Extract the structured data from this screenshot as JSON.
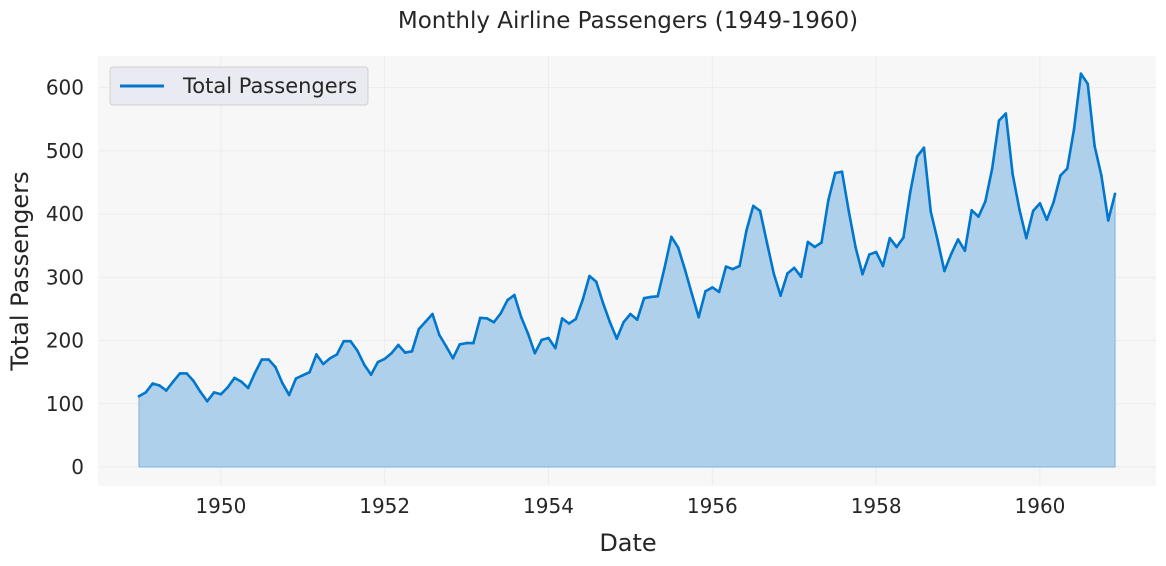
{
  "chart_data": {
    "type": "area",
    "title": "Monthly Airline Passengers (1949-1960)",
    "xlabel": "Date",
    "ylabel": "Total Passengers",
    "xlim": [
      "1948-07",
      "1961-06"
    ],
    "ylim": [
      -30,
      650
    ],
    "x_ticks": [
      "1950",
      "1952",
      "1954",
      "1956",
      "1958",
      "1960"
    ],
    "y_ticks": [
      0,
      100,
      200,
      300,
      400,
      500,
      600
    ],
    "grid": true,
    "legend_position": "upper-left",
    "colors": {
      "line": "#0077cc",
      "fill": "#aed0ea",
      "plot_background": "#f7f7f7",
      "grid": "#ececec"
    },
    "series": [
      {
        "name": "Total Passengers",
        "start": "1949-01",
        "frequency": "monthly",
        "values": [
          112,
          118,
          132,
          129,
          121,
          135,
          148,
          148,
          136,
          119,
          104,
          118,
          115,
          126,
          141,
          135,
          125,
          149,
          170,
          170,
          158,
          133,
          114,
          140,
          145,
          150,
          178,
          163,
          172,
          178,
          199,
          199,
          184,
          162,
          146,
          166,
          171,
          180,
          193,
          181,
          183,
          218,
          230,
          242,
          209,
          191,
          172,
          194,
          196,
          196,
          236,
          235,
          229,
          243,
          264,
          272,
          237,
          211,
          180,
          201,
          204,
          188,
          235,
          227,
          234,
          264,
          302,
          293,
          259,
          229,
          203,
          229,
          242,
          233,
          267,
          269,
          270,
          315,
          364,
          347,
          312,
          274,
          237,
          278,
          284,
          277,
          317,
          313,
          318,
          374,
          413,
          405,
          355,
          306,
          271,
          306,
          315,
          301,
          356,
          348,
          355,
          422,
          465,
          467,
          404,
          347,
          305,
          336,
          340,
          318,
          362,
          348,
          363,
          435,
          491,
          505,
          404,
          359,
          310,
          337,
          360,
          342,
          406,
          396,
          420,
          472,
          548,
          559,
          463,
          407,
          362,
          405,
          417,
          391,
          419,
          461,
          472,
          535,
          622,
          606,
          508,
          461,
          390,
          432
        ]
      }
    ]
  }
}
